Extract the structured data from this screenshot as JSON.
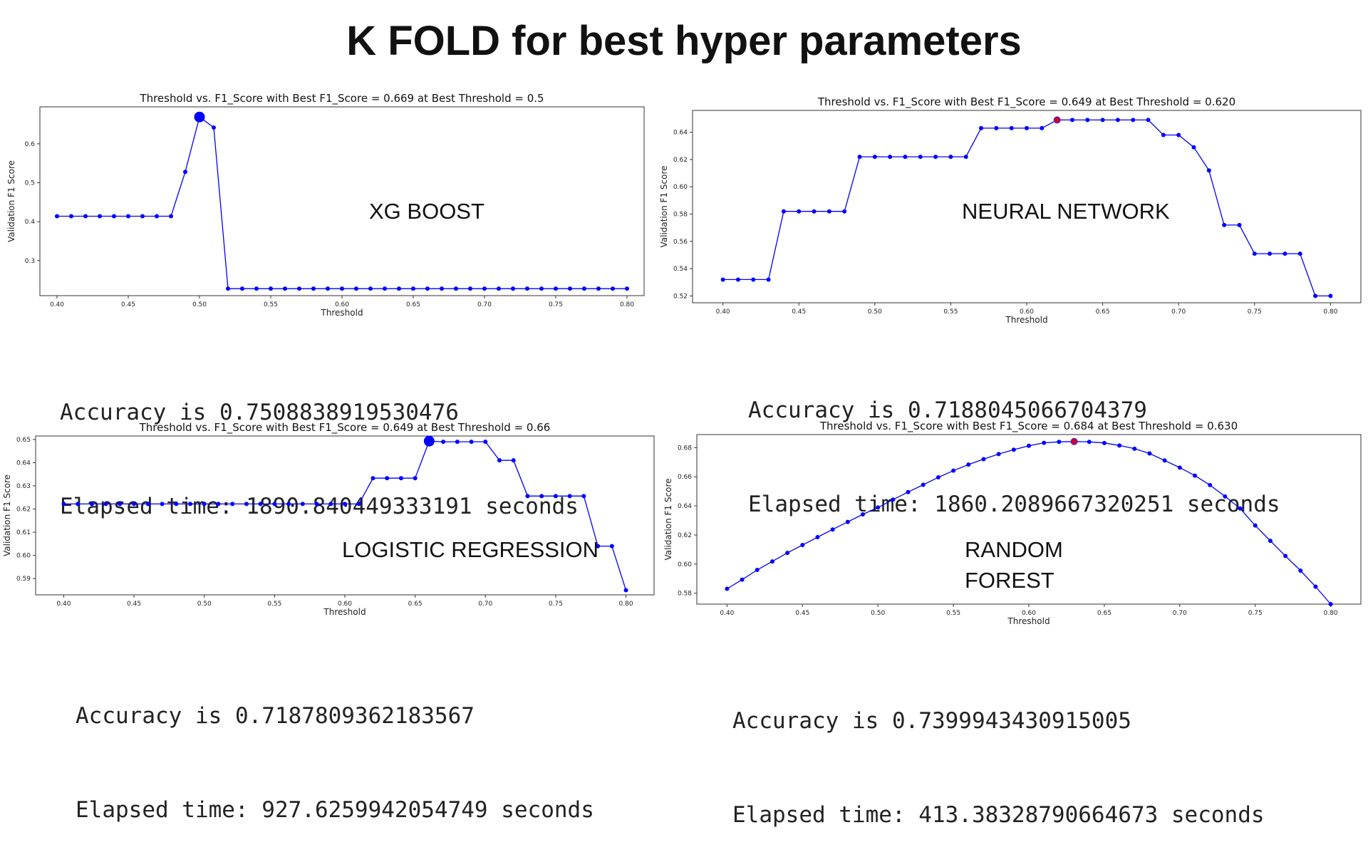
{
  "page_title": "K FOLD for best hyper parameters",
  "colors": {
    "line": "#0000ff",
    "best_marker_fill": "#0000ff",
    "best_marker_red": "#cc0033"
  },
  "chart_data": [
    {
      "type": "line",
      "model_label": "XG BOOST",
      "title": "Threshold vs. F1_Score with Best F1_Score = 0.669 at Best Threshold = 0.5",
      "xlabel": "Threshold",
      "ylabel": "Validation F1 Score",
      "xlim": [
        0.388,
        0.812
      ],
      "ylim": [
        0.21,
        0.695
      ],
      "xticks": [
        0.4,
        0.45,
        0.5,
        0.55,
        0.6,
        0.65,
        0.7,
        0.75,
        0.8
      ],
      "xtick_labels": [
        "0.40",
        "0.45",
        "0.50",
        "0.55",
        "0.60",
        "0.65",
        "0.70",
        "0.75",
        "0.80"
      ],
      "yticks": [
        0.3,
        0.4,
        0.5,
        0.6
      ],
      "ytick_labels": [
        "0.3",
        "0.4",
        "0.5",
        "0.6"
      ],
      "x": [
        0.4,
        0.41,
        0.42,
        0.43,
        0.44,
        0.45,
        0.46,
        0.47,
        0.48,
        0.49,
        0.5,
        0.51,
        0.52,
        0.53,
        0.54,
        0.55,
        0.56,
        0.57,
        0.58,
        0.59,
        0.6,
        0.61,
        0.62,
        0.63,
        0.64,
        0.65,
        0.66,
        0.67,
        0.68,
        0.69,
        0.7,
        0.71,
        0.72,
        0.73,
        0.74,
        0.75,
        0.76,
        0.77,
        0.78,
        0.79,
        0.8
      ],
      "values": [
        0.414,
        0.414,
        0.414,
        0.414,
        0.414,
        0.414,
        0.414,
        0.414,
        0.414,
        0.528,
        0.669,
        0.642,
        0.228,
        0.228,
        0.228,
        0.228,
        0.228,
        0.228,
        0.228,
        0.228,
        0.228,
        0.228,
        0.228,
        0.228,
        0.228,
        0.228,
        0.228,
        0.228,
        0.228,
        0.228,
        0.228,
        0.228,
        0.228,
        0.228,
        0.228,
        0.228,
        0.228,
        0.228,
        0.228,
        0.228,
        0.228
      ],
      "best": {
        "x": 0.5,
        "y": 0.669,
        "marker": "blue"
      },
      "accuracy_text": "Accuracy is 0.7508838919530476",
      "time_text": "Elapsed time: 1890.840449333191 seconds"
    },
    {
      "type": "line",
      "model_label": "NEURAL NETWORK",
      "title": "Threshold vs. F1_Score with Best F1_Score = 0.649 at Best Threshold = 0.620",
      "xlabel": "Threshold",
      "ylabel": "Validation F1 Score",
      "xlim": [
        0.38,
        0.82
      ],
      "ylim": [
        0.515,
        0.656
      ],
      "xticks": [
        0.4,
        0.45,
        0.5,
        0.55,
        0.6,
        0.65,
        0.7,
        0.75,
        0.8
      ],
      "xtick_labels": [
        "0.40",
        "0.45",
        "0.50",
        "0.55",
        "0.60",
        "0.65",
        "0.70",
        "0.75",
        "0.80"
      ],
      "yticks": [
        0.52,
        0.54,
        0.56,
        0.58,
        0.6,
        0.62,
        0.64
      ],
      "ytick_labels": [
        "0.52",
        "0.54",
        "0.56",
        "0.58",
        "0.60",
        "0.62",
        "0.64"
      ],
      "x": [
        0.4,
        0.41,
        0.42,
        0.43,
        0.44,
        0.45,
        0.46,
        0.47,
        0.48,
        0.49,
        0.5,
        0.51,
        0.52,
        0.53,
        0.54,
        0.55,
        0.56,
        0.57,
        0.58,
        0.59,
        0.6,
        0.61,
        0.62,
        0.63,
        0.64,
        0.65,
        0.66,
        0.67,
        0.68,
        0.69,
        0.7,
        0.71,
        0.72,
        0.73,
        0.74,
        0.75,
        0.76,
        0.77,
        0.78,
        0.79,
        0.8
      ],
      "values": [
        0.532,
        0.532,
        0.532,
        0.532,
        0.582,
        0.582,
        0.582,
        0.582,
        0.582,
        0.622,
        0.622,
        0.622,
        0.622,
        0.622,
        0.622,
        0.622,
        0.622,
        0.643,
        0.643,
        0.643,
        0.643,
        0.643,
        0.649,
        0.649,
        0.649,
        0.649,
        0.649,
        0.649,
        0.649,
        0.638,
        0.638,
        0.629,
        0.612,
        0.572,
        0.572,
        0.551,
        0.551,
        0.551,
        0.551,
        0.52,
        0.52
      ],
      "best": {
        "x": 0.62,
        "y": 0.649,
        "marker": "red"
      },
      "accuracy_text": "Accuracy is 0.7188045066704379",
      "time_text": "Elapsed time: 1860.2089667320251 seconds"
    },
    {
      "type": "line",
      "model_label": "LOGISTIC REGRESSION",
      "title": "Threshold vs. F1_Score with Best F1_Score = 0.649 at Best Threshold = 0.66",
      "xlabel": "Threshold",
      "ylabel": "Validation F1 Score",
      "xlim": [
        0.38,
        0.82
      ],
      "ylim": [
        0.583,
        0.6515
      ],
      "xticks": [
        0.4,
        0.45,
        0.5,
        0.55,
        0.6,
        0.65,
        0.7,
        0.75,
        0.8
      ],
      "xtick_labels": [
        "0.40",
        "0.45",
        "0.50",
        "0.55",
        "0.60",
        "0.65",
        "0.70",
        "0.75",
        "0.80"
      ],
      "yticks": [
        0.59,
        0.6,
        0.61,
        0.62,
        0.63,
        0.64,
        0.65
      ],
      "ytick_labels": [
        "0.59",
        "0.60",
        "0.61",
        "0.62",
        "0.63",
        "0.64",
        "0.65"
      ],
      "x": [
        0.4,
        0.41,
        0.42,
        0.43,
        0.44,
        0.45,
        0.46,
        0.47,
        0.48,
        0.49,
        0.5,
        0.51,
        0.52,
        0.53,
        0.54,
        0.55,
        0.56,
        0.57,
        0.58,
        0.59,
        0.6,
        0.61,
        0.62,
        0.63,
        0.64,
        0.65,
        0.66,
        0.67,
        0.68,
        0.69,
        0.7,
        0.71,
        0.72,
        0.73,
        0.74,
        0.75,
        0.76,
        0.77,
        0.78,
        0.79,
        0.8
      ],
      "values": [
        0.6222,
        0.6222,
        0.6222,
        0.6222,
        0.6222,
        0.6222,
        0.6222,
        0.6222,
        0.6222,
        0.6222,
        0.6222,
        0.6222,
        0.6222,
        0.6222,
        0.6222,
        0.6222,
        0.6222,
        0.6222,
        0.6222,
        0.6222,
        0.6222,
        0.6222,
        0.6333,
        0.6333,
        0.6333,
        0.6333,
        0.6493,
        0.649,
        0.649,
        0.649,
        0.649,
        0.641,
        0.641,
        0.6256,
        0.6256,
        0.6256,
        0.6256,
        0.6256,
        0.604,
        0.604,
        0.585
      ],
      "best": {
        "x": 0.66,
        "y": 0.6493,
        "marker": "blue"
      },
      "accuracy_text": "Accuracy is 0.7187809362183567",
      "time_text": "Elapsed time: 927.6259942054749 seconds"
    },
    {
      "type": "line",
      "model_label": "RANDOM\nFOREST",
      "title": "Threshold vs. F1_Score with Best F1_Score = 0.684 at Best Threshold = 0.630",
      "xlabel": "Threshold",
      "ylabel": "Validation F1 Score",
      "xlim": [
        0.38,
        0.82
      ],
      "ylim": [
        0.5725,
        0.689
      ],
      "xticks": [
        0.4,
        0.45,
        0.5,
        0.55,
        0.6,
        0.65,
        0.7,
        0.75,
        0.8
      ],
      "xtick_labels": [
        "0.40",
        "0.45",
        "0.50",
        "0.55",
        "0.60",
        "0.65",
        "0.70",
        "0.75",
        "0.80"
      ],
      "yticks": [
        0.58,
        0.6,
        0.62,
        0.64,
        0.66,
        0.68
      ],
      "ytick_labels": [
        "0.58",
        "0.60",
        "0.62",
        "0.64",
        "0.66",
        "0.68"
      ],
      "x": [
        0.4,
        0.41,
        0.42,
        0.43,
        0.44,
        0.45,
        0.46,
        0.47,
        0.48,
        0.49,
        0.5,
        0.51,
        0.52,
        0.53,
        0.54,
        0.55,
        0.56,
        0.57,
        0.58,
        0.59,
        0.6,
        0.61,
        0.62,
        0.63,
        0.64,
        0.65,
        0.66,
        0.67,
        0.68,
        0.69,
        0.7,
        0.71,
        0.72,
        0.73,
        0.74,
        0.75,
        0.76,
        0.77,
        0.78,
        0.79,
        0.8
      ],
      "values": [
        0.583,
        0.5893,
        0.596,
        0.6018,
        0.6077,
        0.6131,
        0.6185,
        0.6238,
        0.629,
        0.6342,
        0.6389,
        0.6443,
        0.6495,
        0.6545,
        0.6596,
        0.6642,
        0.6684,
        0.6721,
        0.6756,
        0.6786,
        0.6813,
        0.6833,
        0.684,
        0.6842,
        0.684,
        0.6832,
        0.6815,
        0.6793,
        0.676,
        0.6712,
        0.6663,
        0.6608,
        0.6543,
        0.6465,
        0.6382,
        0.6265,
        0.616,
        0.6056,
        0.5955,
        0.5845,
        0.5725
      ],
      "best": {
        "x": 0.63,
        "y": 0.6842,
        "marker": "red"
      },
      "accuracy_text": "Accuracy is 0.7399943430915005",
      "time_text": "Elapsed time: 413.38328790664673 seconds"
    }
  ]
}
